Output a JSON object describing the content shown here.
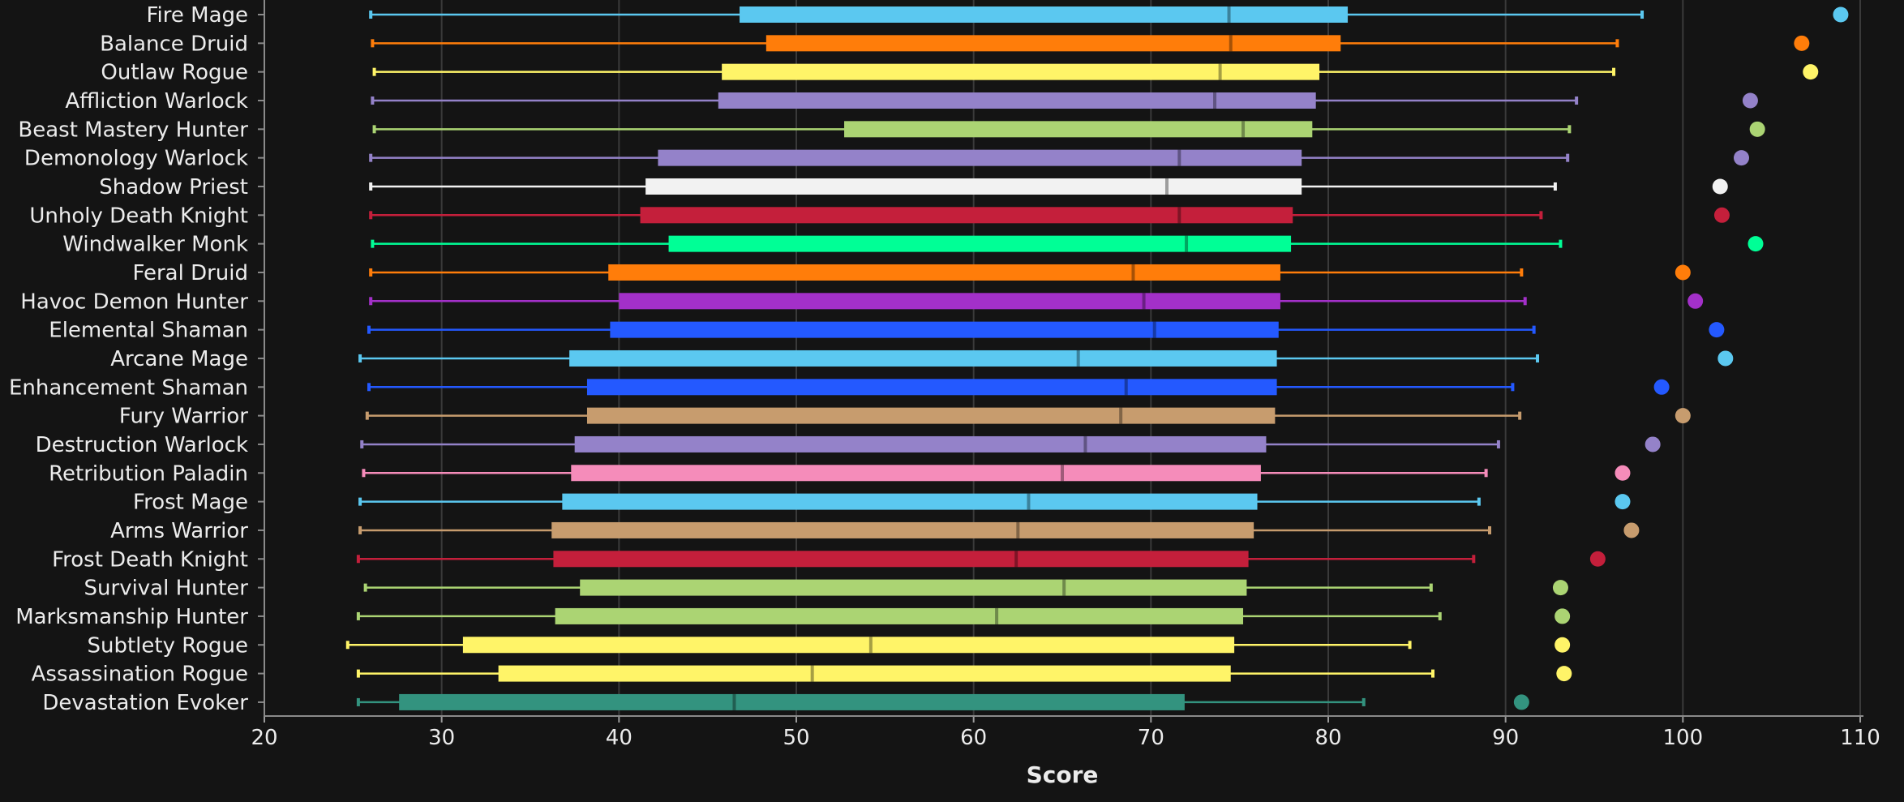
{
  "chart_data": {
    "type": "boxplot",
    "xlabel": "Score",
    "xlim": [
      20,
      110
    ],
    "xticks": [
      "20",
      "30",
      "40",
      "50",
      "60",
      "70",
      "80",
      "90",
      "100",
      "110"
    ],
    "grid": true,
    "series": [
      {
        "name": "Fire Mage",
        "color": "#5bc8f0",
        "min": 26.0,
        "q1": 46.8,
        "median": 74.4,
        "q3": 81.1,
        "max": 97.7,
        "max_point": 108.9
      },
      {
        "name": "Balance Druid",
        "color": "#ff7d0a",
        "min": 26.1,
        "q1": 48.3,
        "median": 74.5,
        "q3": 80.7,
        "max": 96.3,
        "max_point": 106.7
      },
      {
        "name": "Outlaw Rogue",
        "color": "#fff468",
        "min": 26.2,
        "q1": 45.8,
        "median": 73.9,
        "q3": 79.5,
        "max": 96.1,
        "max_point": 107.2
      },
      {
        "name": "Affliction Warlock",
        "color": "#9482c9",
        "min": 26.1,
        "q1": 45.6,
        "median": 73.6,
        "q3": 79.3,
        "max": 94.0,
        "max_point": 103.8
      },
      {
        "name": "Beast Mastery Hunter",
        "color": "#abd473",
        "min": 26.2,
        "q1": 52.7,
        "median": 75.2,
        "q3": 79.1,
        "max": 93.6,
        "max_point": 104.2
      },
      {
        "name": "Demonology Warlock",
        "color": "#9482c9",
        "min": 26.0,
        "q1": 42.2,
        "median": 71.6,
        "q3": 78.5,
        "max": 93.5,
        "max_point": 103.3
      },
      {
        "name": "Shadow Priest",
        "color": "#f2f2f2",
        "min": 26.0,
        "q1": 41.5,
        "median": 70.9,
        "q3": 78.5,
        "max": 92.8,
        "max_point": 102.1
      },
      {
        "name": "Unholy Death Knight",
        "color": "#c41f3b",
        "min": 26.0,
        "q1": 41.2,
        "median": 71.6,
        "q3": 78.0,
        "max": 92.0,
        "max_point": 102.2
      },
      {
        "name": "Windwalker Monk",
        "color": "#00ff96",
        "min": 26.1,
        "q1": 42.8,
        "median": 72.0,
        "q3": 77.9,
        "max": 93.1,
        "max_point": 104.1
      },
      {
        "name": "Feral Druid",
        "color": "#ff7d0a",
        "min": 26.0,
        "q1": 39.4,
        "median": 69.0,
        "q3": 77.3,
        "max": 90.9,
        "max_point": 100.0
      },
      {
        "name": "Havoc Demon Hunter",
        "color": "#a330c9",
        "min": 26.0,
        "q1": 40.0,
        "median": 69.6,
        "q3": 77.3,
        "max": 91.1,
        "max_point": 100.7
      },
      {
        "name": "Elemental Shaman",
        "color": "#2459ff",
        "min": 25.9,
        "q1": 39.5,
        "median": 70.2,
        "q3": 77.2,
        "max": 91.6,
        "max_point": 101.9
      },
      {
        "name": "Arcane Mage",
        "color": "#5bc8f0",
        "min": 25.4,
        "q1": 37.2,
        "median": 65.9,
        "q3": 77.1,
        "max": 91.8,
        "max_point": 102.4
      },
      {
        "name": "Enhancement Shaman",
        "color": "#2459ff",
        "min": 25.9,
        "q1": 38.2,
        "median": 68.6,
        "q3": 77.1,
        "max": 90.4,
        "max_point": 98.8
      },
      {
        "name": "Fury Warrior",
        "color": "#c79c6e",
        "min": 25.8,
        "q1": 38.2,
        "median": 68.3,
        "q3": 77.0,
        "max": 90.8,
        "max_point": 100.0
      },
      {
        "name": "Destruction Warlock",
        "color": "#9482c9",
        "min": 25.5,
        "q1": 37.5,
        "median": 66.3,
        "q3": 76.5,
        "max": 89.6,
        "max_point": 98.3
      },
      {
        "name": "Retribution Paladin",
        "color": "#f58cba",
        "min": 25.6,
        "q1": 37.3,
        "median": 65.0,
        "q3": 76.2,
        "max": 88.9,
        "max_point": 96.6
      },
      {
        "name": "Frost Mage",
        "color": "#5bc8f0",
        "min": 25.4,
        "q1": 36.8,
        "median": 63.1,
        "q3": 76.0,
        "max": 88.5,
        "max_point": 96.6
      },
      {
        "name": "Arms Warrior",
        "color": "#c79c6e",
        "min": 25.4,
        "q1": 36.2,
        "median": 62.5,
        "q3": 75.8,
        "max": 89.1,
        "max_point": 97.1
      },
      {
        "name": "Frost Death Knight",
        "color": "#c41f3b",
        "min": 25.3,
        "q1": 36.3,
        "median": 62.4,
        "q3": 75.5,
        "max": 88.2,
        "max_point": 95.2
      },
      {
        "name": "Survival Hunter",
        "color": "#abd473",
        "min": 25.7,
        "q1": 37.8,
        "median": 65.1,
        "q3": 75.4,
        "max": 85.8,
        "max_point": 93.1
      },
      {
        "name": "Marksmanship Hunter",
        "color": "#abd473",
        "min": 25.3,
        "q1": 36.4,
        "median": 61.3,
        "q3": 75.2,
        "max": 86.3,
        "max_point": 93.2
      },
      {
        "name": "Subtlety Rogue",
        "color": "#fff468",
        "min": 24.7,
        "q1": 31.2,
        "median": 54.2,
        "q3": 74.7,
        "max": 84.6,
        "max_point": 93.2
      },
      {
        "name": "Assassination Rogue",
        "color": "#fff468",
        "min": 25.3,
        "q1": 33.2,
        "median": 50.9,
        "q3": 74.5,
        "max": 85.9,
        "max_point": 93.3
      },
      {
        "name": "Devastation Evoker",
        "color": "#33937f",
        "min": 25.3,
        "q1": 27.6,
        "median": 46.5,
        "q3": 71.9,
        "max": 82.0,
        "max_point": 90.9
      }
    ]
  }
}
